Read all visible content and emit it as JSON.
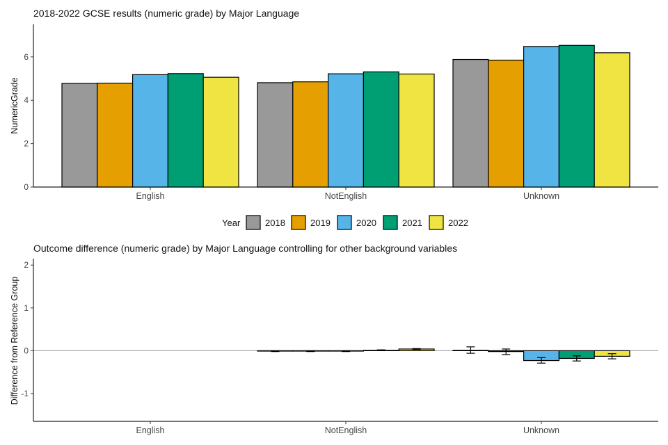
{
  "chart_data": [
    {
      "type": "bar",
      "title": "2018-2022 GCSE results (numeric grade) by Major Language",
      "xlabel": "",
      "ylabel": "NumericGrade",
      "ylim": [
        0,
        7.5
      ],
      "yticks": [
        0,
        2,
        4,
        6
      ],
      "grid": false,
      "categories": [
        "English",
        "NotEnglish",
        "Unknown"
      ],
      "series": [
        {
          "name": "2018",
          "color": "#999999",
          "values": [
            4.78,
            4.81,
            5.88
          ]
        },
        {
          "name": "2019",
          "color": "#E69F00",
          "values": [
            4.79,
            4.85,
            5.85
          ]
        },
        {
          "name": "2020",
          "color": "#56B4E9",
          "values": [
            5.18,
            5.22,
            6.48
          ]
        },
        {
          "name": "2021",
          "color": "#009E73",
          "values": [
            5.23,
            5.31,
            6.53
          ]
        },
        {
          "name": "2022",
          "color": "#F0E442",
          "values": [
            5.06,
            5.21,
            6.19
          ]
        }
      ]
    },
    {
      "type": "bar",
      "title": "Outcome difference (numeric grade) by Major Language controlling for other background variables",
      "xlabel": "",
      "ylabel": "Difference from Reference Group",
      "ylim": [
        -1.65,
        2.15
      ],
      "yticks": [
        -1,
        0,
        1,
        2
      ],
      "grid": false,
      "reference_line": 0,
      "categories": [
        "English",
        "NotEnglish",
        "Unknown"
      ],
      "series": [
        {
          "name": "2018",
          "color": "#999999",
          "values": [
            null,
            -0.01,
            0.01
          ],
          "error_low": [
            null,
            -0.02,
            -0.06
          ],
          "error_high": [
            null,
            0.0,
            0.09
          ]
        },
        {
          "name": "2019",
          "color": "#E69F00",
          "values": [
            null,
            -0.01,
            -0.02
          ],
          "error_low": [
            null,
            -0.02,
            -0.09
          ],
          "error_high": [
            null,
            0.0,
            0.04
          ]
        },
        {
          "name": "2020",
          "color": "#56B4E9",
          "values": [
            null,
            -0.01,
            -0.23
          ],
          "error_low": [
            null,
            -0.02,
            -0.29
          ],
          "error_high": [
            null,
            0.0,
            -0.16
          ]
        },
        {
          "name": "2021",
          "color": "#009E73",
          "values": [
            null,
            0.01,
            -0.18
          ],
          "error_low": [
            null,
            0.0,
            -0.24
          ],
          "error_high": [
            null,
            0.02,
            -0.12
          ]
        },
        {
          "name": "2022",
          "color": "#F0E442",
          "values": [
            null,
            0.04,
            -0.13
          ],
          "error_low": [
            null,
            0.03,
            -0.19
          ],
          "error_high": [
            null,
            0.05,
            -0.07
          ]
        }
      ]
    }
  ],
  "legend": {
    "title": "Year",
    "items": [
      "2018",
      "2019",
      "2020",
      "2021",
      "2022"
    ],
    "colors": [
      "#999999",
      "#E69F00",
      "#56B4E9",
      "#009E73",
      "#F0E442"
    ]
  }
}
